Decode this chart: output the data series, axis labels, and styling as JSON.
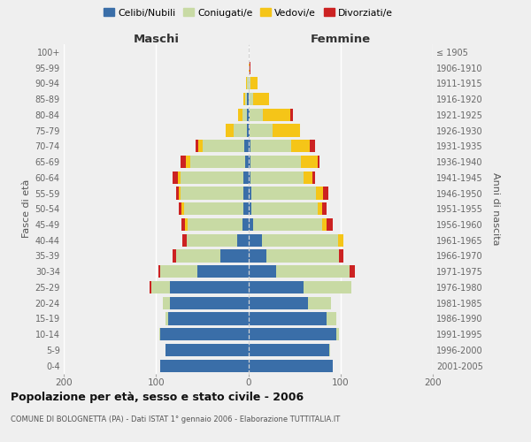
{
  "age_groups": [
    "0-4",
    "5-9",
    "10-14",
    "15-19",
    "20-24",
    "25-29",
    "30-34",
    "35-39",
    "40-44",
    "45-49",
    "50-54",
    "55-59",
    "60-64",
    "65-69",
    "70-74",
    "75-79",
    "80-84",
    "85-89",
    "90-94",
    "95-99",
    "100+"
  ],
  "birth_years": [
    "2001-2005",
    "1996-2000",
    "1991-1995",
    "1986-1990",
    "1981-1985",
    "1976-1980",
    "1971-1975",
    "1966-1970",
    "1961-1965",
    "1956-1960",
    "1951-1955",
    "1946-1950",
    "1941-1945",
    "1936-1940",
    "1931-1935",
    "1926-1930",
    "1921-1925",
    "1916-1920",
    "1911-1915",
    "1906-1910",
    "≤ 1905"
  ],
  "maschi": {
    "celibi": [
      95,
      90,
      95,
      87,
      85,
      85,
      55,
      30,
      12,
      6,
      5,
      5,
      5,
      3,
      4,
      1,
      1,
      1,
      0,
      0,
      0
    ],
    "coniugati": [
      0,
      0,
      1,
      3,
      8,
      20,
      40,
      48,
      55,
      60,
      65,
      68,
      68,
      60,
      45,
      15,
      5,
      2,
      1,
      0,
      0
    ],
    "vedovi": [
      0,
      0,
      0,
      0,
      0,
      0,
      0,
      0,
      0,
      3,
      2,
      2,
      3,
      5,
      5,
      8,
      5,
      2,
      1,
      0,
      0
    ],
    "divorziati": [
      0,
      0,
      0,
      0,
      0,
      2,
      2,
      4,
      4,
      3,
      3,
      3,
      6,
      5,
      3,
      0,
      0,
      0,
      0,
      0,
      0
    ]
  },
  "femmine": {
    "nubili": [
      92,
      88,
      95,
      85,
      65,
      60,
      30,
      20,
      15,
      5,
      3,
      3,
      2,
      2,
      2,
      1,
      1,
      0,
      0,
      0,
      0
    ],
    "coniugate": [
      0,
      1,
      3,
      10,
      25,
      52,
      80,
      78,
      82,
      75,
      72,
      70,
      58,
      55,
      45,
      25,
      15,
      5,
      2,
      0,
      0
    ],
    "vedove": [
      0,
      0,
      0,
      0,
      0,
      0,
      0,
      0,
      6,
      5,
      5,
      8,
      10,
      18,
      20,
      30,
      30,
      18,
      8,
      1,
      0
    ],
    "divorziate": [
      0,
      0,
      0,
      0,
      0,
      0,
      6,
      5,
      0,
      7,
      5,
      6,
      2,
      2,
      5,
      0,
      2,
      0,
      0,
      1,
      0
    ]
  },
  "colors": {
    "celibi": "#3a6ea8",
    "coniugati": "#c8daa4",
    "vedovi": "#f5c518",
    "divorziati": "#cc2222"
  },
  "legend_labels": [
    "Celibi/Nubili",
    "Coniugati/e",
    "Vedovi/e",
    "Divorziati/e"
  ],
  "title": "Popolazione per età, sesso e stato civile - 2006",
  "subtitle": "COMUNE DI BOLOGNETTA (PA) - Dati ISTAT 1° gennaio 2006 - Elaborazione TUTTITALIA.IT",
  "maschi_label": "Maschi",
  "femmine_label": "Femmine",
  "ylabel_left": "Fasce di età",
  "ylabel_right": "Anni di nascita",
  "xlim": 200,
  "bg_color": "#efefef"
}
